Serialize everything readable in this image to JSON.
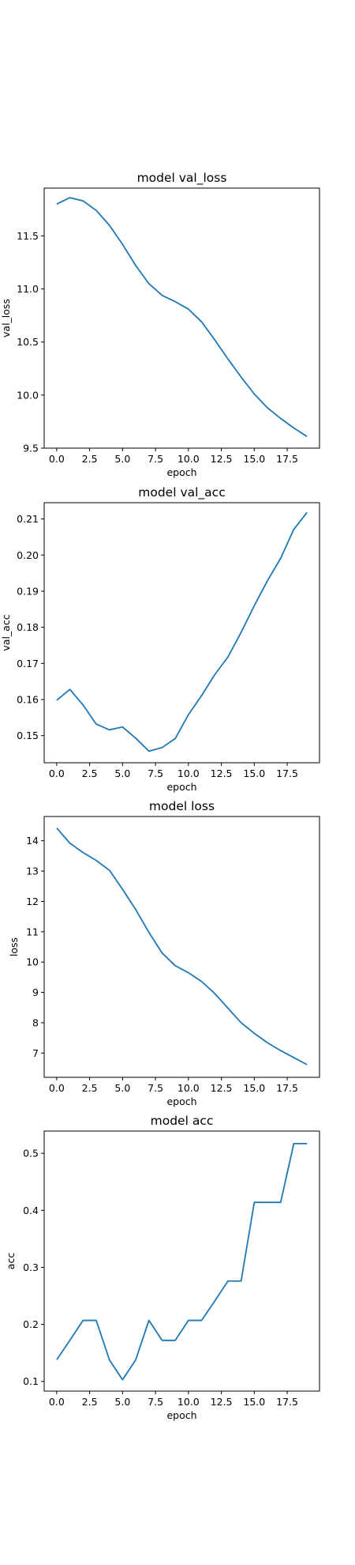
{
  "colors": {
    "line": "#1f77b4"
  },
  "chart_data": [
    {
      "type": "line",
      "title": "model val_loss",
      "xlabel": "epoch",
      "ylabel": "val_loss",
      "grid": false,
      "xlim": [
        -0.95,
        19.95
      ],
      "ylim": [
        9.5,
        11.95
      ],
      "xticks": [
        0.0,
        2.5,
        5.0,
        7.5,
        10.0,
        12.5,
        15.0,
        17.5
      ],
      "xtick_labels": [
        "0.0",
        "2.5",
        "5.0",
        "7.5",
        "10.0",
        "12.5",
        "15.0",
        "17.5"
      ],
      "yticks": [
        9.5,
        10.0,
        10.5,
        11.0,
        11.5
      ],
      "ytick_labels": [
        "9.5",
        "10.0",
        "10.5",
        "11.0",
        "11.5"
      ],
      "x": [
        0,
        1,
        2,
        3,
        4,
        5,
        6,
        7,
        8,
        9,
        10,
        11,
        12,
        13,
        14,
        15,
        16,
        17,
        18,
        19
      ],
      "series": [
        {
          "values": [
            11.8,
            11.86,
            11.83,
            11.74,
            11.6,
            11.42,
            11.22,
            11.05,
            10.94,
            10.88,
            10.81,
            10.69,
            10.52,
            10.34,
            10.17,
            10.01,
            9.88,
            9.78,
            9.69,
            9.61
          ]
        }
      ]
    },
    {
      "type": "line",
      "title": "model val_acc",
      "xlabel": "epoch",
      "ylabel": "val_acc",
      "grid": false,
      "xlim": [
        -0.95,
        19.95
      ],
      "ylim": [
        0.1425,
        0.2145
      ],
      "xticks": [
        0.0,
        2.5,
        5.0,
        7.5,
        10.0,
        12.5,
        15.0,
        17.5
      ],
      "xtick_labels": [
        "0.0",
        "2.5",
        "5.0",
        "7.5",
        "10.0",
        "12.5",
        "15.0",
        "17.5"
      ],
      "yticks": [
        0.15,
        0.16,
        0.17,
        0.18,
        0.19,
        0.2,
        0.21
      ],
      "ytick_labels": [
        "0.15",
        "0.16",
        "0.17",
        "0.18",
        "0.19",
        "0.20",
        "0.21"
      ],
      "x": [
        0,
        1,
        2,
        3,
        4,
        5,
        6,
        7,
        8,
        9,
        10,
        11,
        12,
        13,
        14,
        15,
        16,
        17,
        18,
        19
      ],
      "series": [
        {
          "values": [
            0.1598,
            0.1628,
            0.1585,
            0.1532,
            0.1516,
            0.1524,
            0.1493,
            0.1457,
            0.1467,
            0.1492,
            0.1558,
            0.1611,
            0.1669,
            0.1718,
            0.1786,
            0.186,
            0.1929,
            0.1991,
            0.2071,
            0.2118
          ]
        }
      ]
    },
    {
      "type": "line",
      "title": "model loss",
      "xlabel": "epoch",
      "ylabel": "loss",
      "grid": false,
      "xlim": [
        -0.95,
        19.95
      ],
      "ylim": [
        6.2,
        14.8
      ],
      "xticks": [
        0.0,
        2.5,
        5.0,
        7.5,
        10.0,
        12.5,
        15.0,
        17.5
      ],
      "xtick_labels": [
        "0.0",
        "2.5",
        "5.0",
        "7.5",
        "10.0",
        "12.5",
        "15.0",
        "17.5"
      ],
      "yticks": [
        7,
        8,
        9,
        10,
        11,
        12,
        13,
        14
      ],
      "ytick_labels": [
        "7",
        "8",
        "9",
        "10",
        "11",
        "12",
        "13",
        "14"
      ],
      "x": [
        0,
        1,
        2,
        3,
        4,
        5,
        6,
        7,
        8,
        9,
        10,
        11,
        12,
        13,
        14,
        15,
        16,
        17,
        18,
        19
      ],
      "series": [
        {
          "values": [
            14.42,
            13.92,
            13.61,
            13.35,
            13.03,
            12.4,
            11.73,
            10.98,
            10.3,
            9.88,
            9.65,
            9.36,
            8.96,
            8.48,
            8.0,
            7.65,
            7.34,
            7.08,
            6.85,
            6.62
          ]
        }
      ]
    },
    {
      "type": "line",
      "title": "model acc",
      "xlabel": "epoch",
      "ylabel": "acc",
      "grid": false,
      "xlim": [
        -0.95,
        19.95
      ],
      "ylim": [
        0.083,
        0.539
      ],
      "xticks": [
        0.0,
        2.5,
        5.0,
        7.5,
        10.0,
        12.5,
        15.0,
        17.5
      ],
      "xtick_labels": [
        "0.0",
        "2.5",
        "5.0",
        "7.5",
        "10.0",
        "12.5",
        "15.0",
        "17.5"
      ],
      "yticks": [
        0.1,
        0.2,
        0.3,
        0.4,
        0.5
      ],
      "ytick_labels": [
        "0.1",
        "0.2",
        "0.3",
        "0.4",
        "0.5"
      ],
      "x": [
        0,
        1,
        2,
        3,
        4,
        5,
        6,
        7,
        8,
        9,
        10,
        11,
        12,
        13,
        14,
        15,
        16,
        17,
        18,
        19
      ],
      "series": [
        {
          "values": [
            0.138,
            0.172,
            0.207,
            0.207,
            0.138,
            0.103,
            0.138,
            0.207,
            0.172,
            0.172,
            0.207,
            0.207,
            0.241,
            0.276,
            0.276,
            0.414,
            0.414,
            0.414,
            0.517,
            0.517
          ]
        }
      ]
    }
  ]
}
